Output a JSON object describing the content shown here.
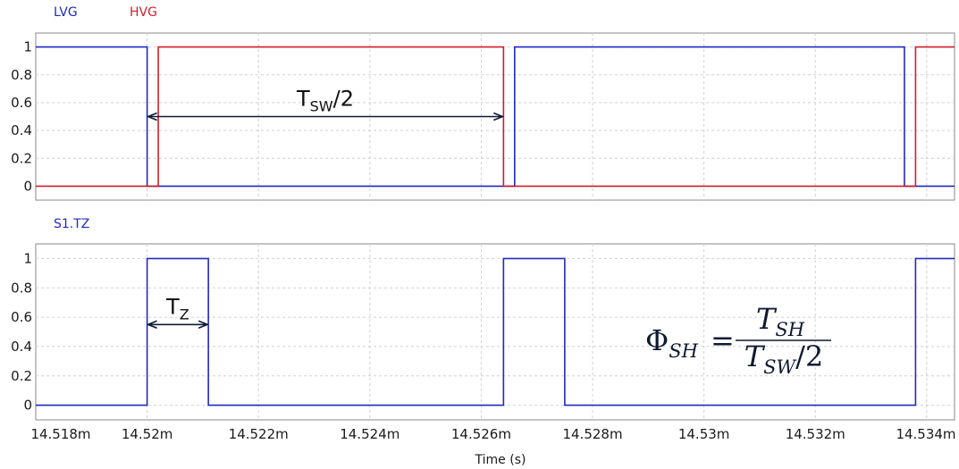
{
  "chart_data": [
    {
      "type": "line",
      "legend": [
        {
          "name": "LVG",
          "color": "#1f2ac0"
        },
        {
          "name": "HVG",
          "color": "#d11f2a"
        }
      ],
      "xlim": [
        0.014518,
        0.0140345
      ],
      "ylim": [
        -0.1,
        1.1
      ],
      "yticks": [
        {
          "value": 0,
          "label": "0"
        },
        {
          "value": 0.2,
          "label": "0.2"
        },
        {
          "value": 0.4,
          "label": "0.4"
        },
        {
          "value": 0.6,
          "label": "0.6"
        },
        {
          "value": 0.8,
          "label": "0.8"
        },
        {
          "value": 1,
          "label": "1"
        }
      ],
      "grid": true,
      "legend_placement": "top-left",
      "series": [
        {
          "name": "LVG",
          "color": "#1f2ac0",
          "x": [
            0.014518,
            0.01452,
            0.01452,
            0.0145266,
            0.0145266,
            0.0145336,
            0.0145336,
            0.0145345
          ],
          "y": [
            1,
            1,
            0,
            0,
            1,
            1,
            0,
            0
          ]
        },
        {
          "name": "HVG",
          "color": "#d11f2a",
          "x": [
            0.014518,
            0.0145202,
            0.0145202,
            0.0145264,
            0.0145264,
            0.0145338,
            0.0145338,
            0.0145345
          ],
          "y": [
            0,
            0,
            1,
            1,
            0,
            0,
            1,
            1
          ]
        }
      ],
      "annotations": [
        {
          "text_main": "T",
          "text_sub": "SW",
          "text_tail": "/2",
          "x_start": 0.01452,
          "x_end": 0.0145264,
          "y": 0.5
        }
      ]
    },
    {
      "type": "line",
      "legend": [
        {
          "name": "S1.TZ",
          "color": "#1f2ac0"
        }
      ],
      "xlim": [
        0.014518,
        0.0145345
      ],
      "ylim": [
        -0.1,
        1.1
      ],
      "yticks": [
        {
          "value": 0,
          "label": "0"
        },
        {
          "value": 0.2,
          "label": "0.2"
        },
        {
          "value": 0.4,
          "label": "0.4"
        },
        {
          "value": 0.6,
          "label": "0.6"
        },
        {
          "value": 0.8,
          "label": "0.8"
        },
        {
          "value": 1,
          "label": "1"
        }
      ],
      "xticks": [
        {
          "value": 0.014518,
          "label": "14.518m"
        },
        {
          "value": 0.01452,
          "label": "14.52m"
        },
        {
          "value": 0.014522,
          "label": "14.522m"
        },
        {
          "value": 0.014524,
          "label": "14.524m"
        },
        {
          "value": 0.014526,
          "label": "14.526m"
        },
        {
          "value": 0.014528,
          "label": "14.528m"
        },
        {
          "value": 0.01453,
          "label": "14.53m"
        },
        {
          "value": 0.014532,
          "label": "14.532m"
        },
        {
          "value": 0.014534,
          "label": "14.534m"
        }
      ],
      "xlabel": "Time (s)",
      "grid": true,
      "legend_placement": "top-left",
      "series": [
        {
          "name": "S1.TZ",
          "color": "#1f2ac0",
          "x": [
            0.014518,
            0.01452,
            0.01452,
            0.0145211,
            0.0145211,
            0.0145264,
            0.0145264,
            0.0145275,
            0.0145275,
            0.0145338,
            0.0145338,
            0.0145345
          ],
          "y": [
            0,
            0,
            1,
            1,
            0,
            0,
            1,
            1,
            0,
            0,
            1,
            1
          ]
        }
      ],
      "annotations": [
        {
          "text_main": "T",
          "text_sub": "Z",
          "text_tail": "",
          "x_start": 0.01452,
          "x_end": 0.0145211,
          "y": 0.55
        }
      ],
      "formula": {
        "lhs": "Φ",
        "lhs_sub": "SH",
        "eq": "=",
        "num": "T",
        "num_sub": "SH",
        "den": "T",
        "den_sub": "SW",
        "den_tail": "/2"
      }
    }
  ]
}
